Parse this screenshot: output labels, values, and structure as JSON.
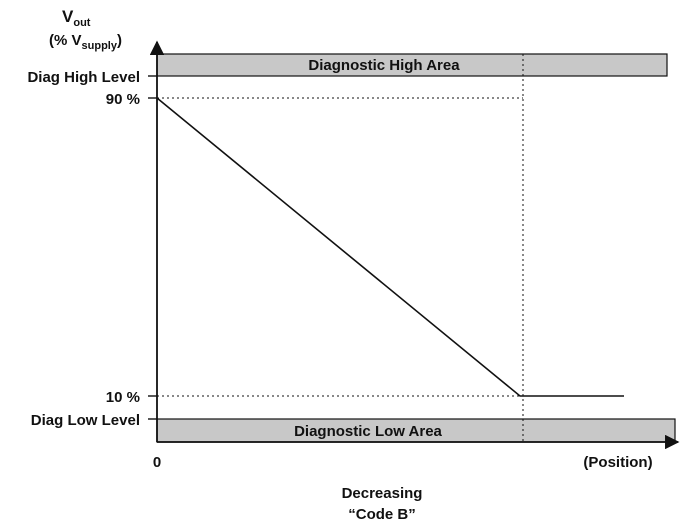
{
  "y_axis_title": {
    "main": "V",
    "main_sub": "out",
    "unit_open": "(% V",
    "unit_sub": "supply",
    "unit_close": ")"
  },
  "y_ticks": {
    "diag_high": "Diag High Level",
    "ninety": "90 %",
    "ten": "10 %",
    "diag_low": "Diag Low Level"
  },
  "x_ticks": {
    "origin": "0",
    "end": "(Position)"
  },
  "areas": {
    "high": "Diagnostic High Area",
    "low": "Diagnostic Low Area"
  },
  "x_caption": {
    "line1": "Decreasing",
    "line2": "“Code B”"
  },
  "colors": {
    "band_fill": "#c8c8c8",
    "stroke": "#111111"
  }
}
